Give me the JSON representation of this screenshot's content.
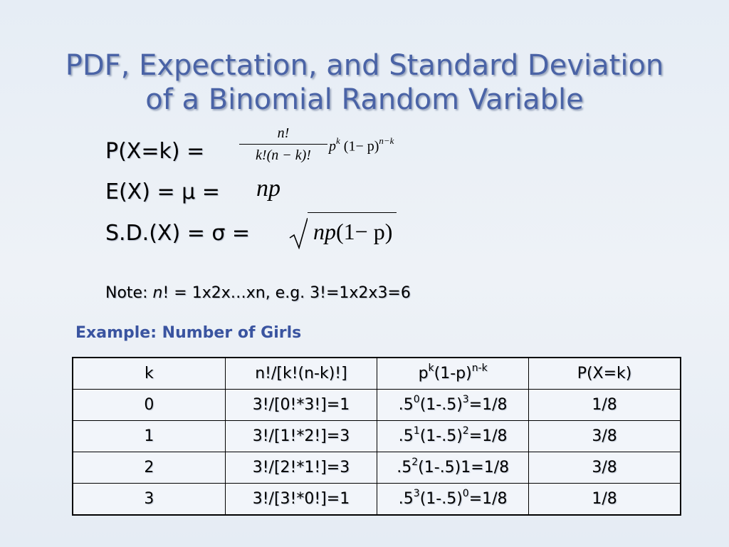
{
  "title": {
    "line1": "PDF, Expectation, and Standard Deviation",
    "line2": "of a Binomial Random Variable"
  },
  "pdf": {
    "lhs": "P(X=k) =",
    "fraction_numerator": "n!",
    "fraction_denominator": "k!(n − k)!",
    "factor_base": "p",
    "factor_base_exp": "k",
    "factor_paren": "(1− p)",
    "factor_paren_exp": "n−k"
  },
  "expectation": {
    "lhs": "E(X) = μ =",
    "rhs": "np"
  },
  "sd": {
    "lhs": "S.D.(X) = σ =",
    "rhs_np": "np",
    "rhs_rest": "(1− p)"
  },
  "note": {
    "prefix": "Note:",
    "n": "n",
    "rest": "! = 1x2x…xn, e.g. 3!=1x2x3=6"
  },
  "example": {
    "label": "Example:  Number of Girls"
  },
  "table": {
    "headers": [
      "k",
      "n!/[k!(n-k)!]",
      "p",
      "k",
      "(1-p)",
      "n-k",
      "P(X=k)"
    ],
    "rows": [
      {
        "k": "0",
        "coef": "3!/[0!*3!]=1",
        "a": ".5",
        "a_exp": "0",
        "b": "(1-.5)",
        "b_exp": "3",
        "c": "=1/8",
        "p": "1/8"
      },
      {
        "k": "1",
        "coef": "3!/[1!*2!]=3",
        "a": ".5",
        "a_exp": "1",
        "b": "(1-.5)",
        "b_exp": "2",
        "c": "=1/8",
        "p": "3/8"
      },
      {
        "k": "2",
        "coef": "3!/[2!*1!]=3",
        "a": ".5",
        "a_exp": "2",
        "b": "(1-.5)1=1/8",
        "b_exp": "",
        "c": "",
        "p": "3/8"
      },
      {
        "k": "3",
        "coef": "3!/[3!*0!]=1",
        "a": ".5",
        "a_exp": "3",
        "b": "(1-.5)",
        "b_exp": "0",
        "c": "=1/8",
        "p": "1/8"
      }
    ]
  },
  "colors": {
    "title": "#4a63a6",
    "example": "#3a54a0",
    "background": "#e9eff6"
  }
}
